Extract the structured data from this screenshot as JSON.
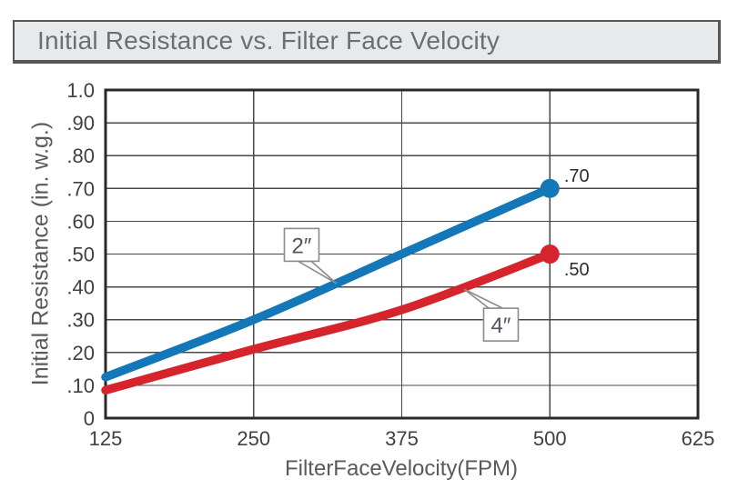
{
  "header": {
    "title": "Initial Resistance vs. Filter Face Velocity"
  },
  "chart_data": {
    "type": "line",
    "title": "Initial Resistance vs. Filter Face Velocity",
    "xlabel": "FilterFaceVelocity(FPM)",
    "ylabel": "Initial Resistance (in. w.g.)",
    "xlim": [
      125,
      625
    ],
    "ylim": [
      0,
      1.0
    ],
    "xticks": {
      "values": [
        125,
        250,
        375,
        500,
        625
      ],
      "labels": [
        "125",
        "250",
        "375",
        "500",
        "625"
      ]
    },
    "yticks": {
      "values": [
        0,
        0.1,
        0.2,
        0.3,
        0.4,
        0.5,
        0.6,
        0.7,
        0.8,
        0.9,
        1.0
      ],
      "labels": [
        "0",
        ".10",
        ".20",
        ".30",
        ".40",
        ".50",
        ".60",
        ".70",
        ".80",
        ".90",
        "1.0"
      ]
    },
    "grid": {
      "vertical_at": [
        250,
        375,
        500
      ],
      "horizontal_at": [
        0.1,
        0.2,
        0.3,
        0.4,
        0.5,
        0.6,
        0.7,
        0.8,
        0.9
      ],
      "color": "#48484a",
      "border_color": "#29292b"
    },
    "series": [
      {
        "name": "2″",
        "color": "#1377b8",
        "x": [
          125,
          250,
          375,
          500
        ],
        "y": [
          0.125,
          0.3,
          0.5,
          0.7
        ],
        "end_dot": true,
        "end_label": {
          "text": ".70",
          "x": 512,
          "y": 0.739
        },
        "callout": {
          "label": "2″",
          "box_center": {
            "x": 290.5,
            "y": 0.528
          },
          "target": {
            "x": 320,
            "y": 0.41
          },
          "attach": "bottom",
          "spread": [
            0.4,
            0.78
          ]
        }
      },
      {
        "name": "4″",
        "color": "#d5242c",
        "x": [
          125,
          250,
          375,
          500
        ],
        "y": [
          0.085,
          0.21,
          0.33,
          0.5
        ],
        "end_dot": true,
        "end_label": {
          "text": ".50",
          "x": 512,
          "y": 0.454
        },
        "callout": {
          "label": "4″",
          "box_center": {
            "x": 458.7,
            "y": 0.285
          },
          "target": {
            "x": 427.6,
            "y": 0.393
          },
          "attach": "top",
          "spread": [
            0.15,
            0.55
          ]
        }
      }
    ]
  }
}
